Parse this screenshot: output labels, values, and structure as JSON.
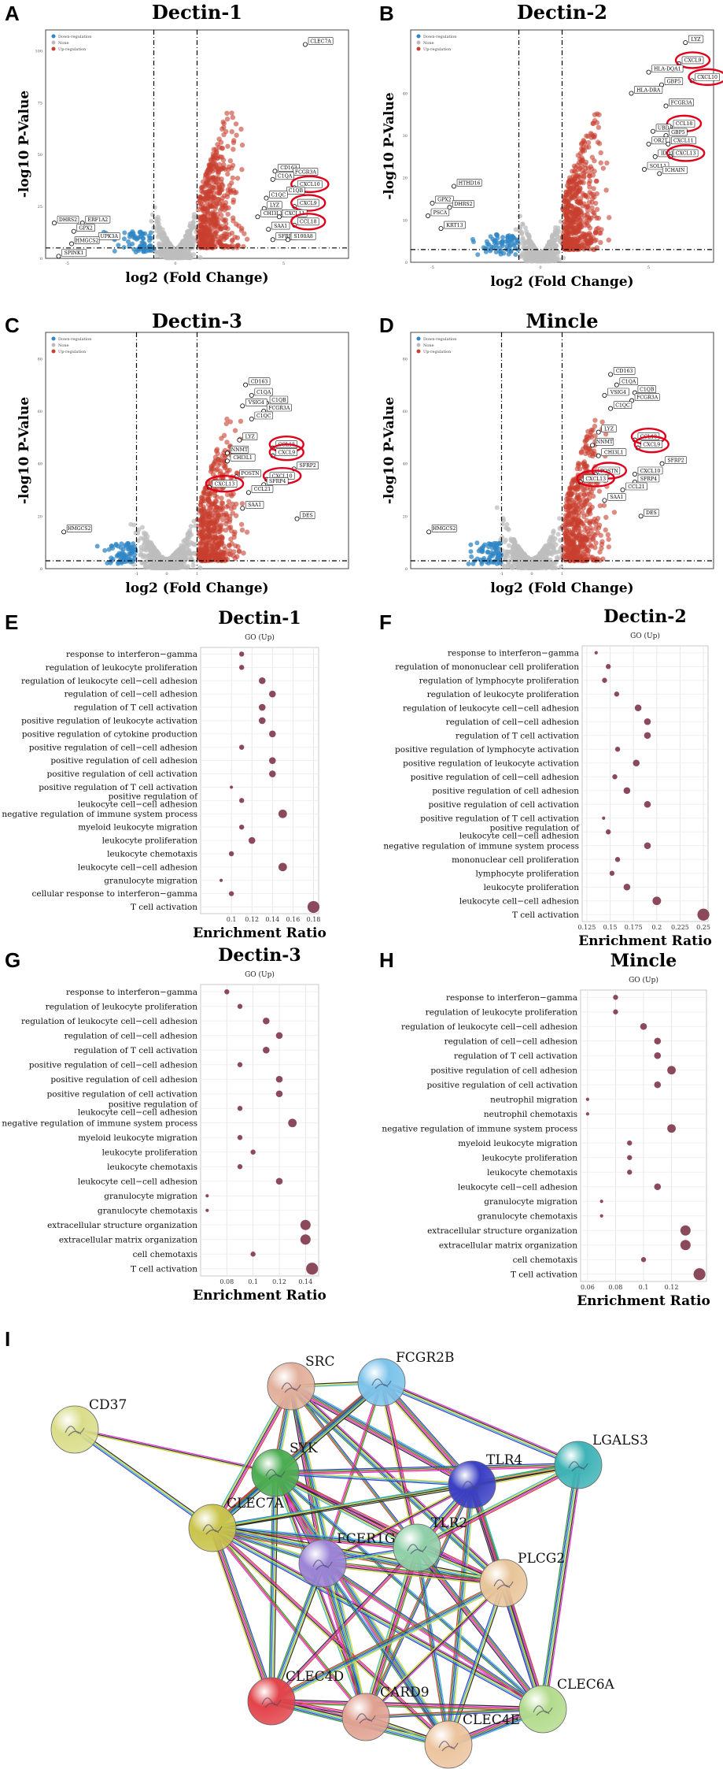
{
  "panel_labels": [
    "A",
    "B",
    "C",
    "D",
    "E",
    "F",
    "G",
    "H",
    "I"
  ],
  "volcano_common": {
    "xlabel": "log2 (Fold Change)",
    "ylabel": "-log10 P-Value",
    "legend": [
      "Down-regulation",
      "None",
      "Up-regulation"
    ],
    "colors": {
      "down": "#2f86c4",
      "none": "#bdbdbd",
      "up": "#c8402e",
      "highlight": "#e0001b"
    }
  },
  "volcano_plots": [
    {
      "id": "A",
      "title": "Dectin-1",
      "xlim": [
        -6,
        8
      ],
      "ylim": [
        0,
        110
      ],
      "yticks": [
        0,
        25,
        50,
        75,
        100
      ],
      "xticks": [
        -5,
        0,
        5
      ],
      "threshold": {
        "fc": 1,
        "p": 5
      },
      "labels_up": [
        {
          "text": "CLEC7A",
          "x": 6.0,
          "y": 103,
          "circled": false
        },
        {
          "text": "CD163",
          "x": 4.6,
          "y": 42,
          "circled": false
        },
        {
          "text": "FCGR3A",
          "x": 5.3,
          "y": 40,
          "circled": false
        },
        {
          "text": "C1QA",
          "x": 4.5,
          "y": 38,
          "circled": false
        },
        {
          "text": "CXCL10",
          "x": 5.5,
          "y": 34,
          "circled": true
        },
        {
          "text": "C1QB",
          "x": 5.0,
          "y": 31,
          "circled": false
        },
        {
          "text": "C1QC",
          "x": 4.2,
          "y": 29,
          "circled": false
        },
        {
          "text": "CXCL9",
          "x": 5.5,
          "y": 25,
          "circled": true
        },
        {
          "text": "LYZ",
          "x": 4.1,
          "y": 24,
          "circled": false
        },
        {
          "text": "CHI3L1",
          "x": 3.8,
          "y": 20,
          "circled": false
        },
        {
          "text": "CXCL11",
          "x": 4.8,
          "y": 20,
          "circled": false
        },
        {
          "text": "CCL18",
          "x": 5.5,
          "y": 16,
          "circled": true
        },
        {
          "text": "SAA1",
          "x": 4.3,
          "y": 14,
          "circled": false
        },
        {
          "text": "SFRP2",
          "x": 4.5,
          "y": 9,
          "circled": false
        },
        {
          "text": "S100A8",
          "x": 5.2,
          "y": 9,
          "circled": false
        }
      ],
      "labels_down": [
        {
          "text": "DHRS2",
          "x": -5.6,
          "y": 17
        },
        {
          "text": "ERF1A2",
          "x": -4.3,
          "y": 17
        },
        {
          "text": "GPX2",
          "x": -4.7,
          "y": 13
        },
        {
          "text": "UPK3A",
          "x": -3.7,
          "y": 9
        },
        {
          "text": "HMGCS2",
          "x": -4.8,
          "y": 7
        },
        {
          "text": "SPINK1",
          "x": -5.4,
          "y": 1
        }
      ]
    },
    {
      "id": "B",
      "title": "Dectin-2",
      "xlim": [
        -6,
        8
      ],
      "ylim": [
        0,
        55
      ],
      "yticks": [
        0,
        10,
        20,
        30,
        40
      ],
      "xticks": [
        -5,
        0,
        5
      ],
      "threshold": {
        "fc": 1,
        "p": 3
      },
      "labels_up": [
        {
          "text": "LYZ",
          "x": 6.7,
          "y": 52,
          "circled": false
        },
        {
          "text": "CXCL9",
          "x": 6.4,
          "y": 47,
          "circled": true
        },
        {
          "text": "HLA-DQA1",
          "x": 5.0,
          "y": 45,
          "circled": false
        },
        {
          "text": "CXCL10",
          "x": 7.0,
          "y": 43,
          "circled": true
        },
        {
          "text": "GBP5",
          "x": 5.6,
          "y": 42,
          "circled": false
        },
        {
          "text": "HLA-DRA",
          "x": 4.2,
          "y": 40,
          "circled": false
        },
        {
          "text": "FCGR3A",
          "x": 5.8,
          "y": 37,
          "circled": false
        },
        {
          "text": "CCL18",
          "x": 6.0,
          "y": 32,
          "circled": true
        },
        {
          "text": "UBD",
          "x": 5.2,
          "y": 31,
          "circled": false
        },
        {
          "text": "GBP5",
          "x": 5.8,
          "y": 30,
          "circled": false
        },
        {
          "text": "OR2T",
          "x": 5.0,
          "y": 28,
          "circled": false
        },
        {
          "text": "CXCL11",
          "x": 5.9,
          "y": 28,
          "circled": false
        },
        {
          "text": "IDO1",
          "x": 5.3,
          "y": 25,
          "circled": false
        },
        {
          "text": "CXCL13",
          "x": 6.0,
          "y": 25,
          "circled": true
        },
        {
          "text": "SOLL1",
          "x": 4.8,
          "y": 22,
          "circled": false
        },
        {
          "text": "ICHAIN",
          "x": 5.5,
          "y": 21,
          "circled": false
        }
      ],
      "labels_down": [
        {
          "text": "HTHD16",
          "x": -4.0,
          "y": 18
        },
        {
          "text": "GPX2",
          "x": -5.0,
          "y": 14
        },
        {
          "text": "DHRS2",
          "x": -4.2,
          "y": 13
        },
        {
          "text": "PSCA",
          "x": -5.2,
          "y": 11
        },
        {
          "text": "KRT13",
          "x": -4.6,
          "y": 8
        }
      ]
    },
    {
      "id": "C",
      "title": "Dectin-3",
      "xlim": [
        -4,
        6
      ],
      "ylim": [
        0,
        90
      ],
      "yticks": [
        0,
        20,
        40,
        60,
        80
      ],
      "xticks": [
        -1,
        0,
        1
      ],
      "threshold": {
        "fc": 1,
        "p": 3
      },
      "labels_up": [
        {
          "text": "CD163",
          "x": 2.6,
          "y": 70,
          "circled": false
        },
        {
          "text": "C1QA",
          "x": 2.8,
          "y": 66,
          "circled": false
        },
        {
          "text": "C1QB",
          "x": 3.3,
          "y": 63,
          "circled": false
        },
        {
          "text": "VSIG4",
          "x": 2.5,
          "y": 62,
          "circled": false
        },
        {
          "text": "FCGR3A",
          "x": 3.2,
          "y": 60,
          "circled": false
        },
        {
          "text": "C1QC",
          "x": 2.8,
          "y": 57,
          "circled": false
        },
        {
          "text": "LYZ",
          "x": 2.4,
          "y": 49,
          "circled": false
        },
        {
          "text": "CCL18",
          "x": 3.5,
          "y": 46,
          "circled": true
        },
        {
          "text": "NNMT",
          "x": 2.0,
          "y": 44,
          "circled": false
        },
        {
          "text": "CXCL9",
          "x": 3.5,
          "y": 43,
          "circled": true
        },
        {
          "text": "CHI3L1",
          "x": 2.0,
          "y": 41,
          "circled": false
        },
        {
          "text": "SFRP2",
          "x": 4.2,
          "y": 38,
          "circled": false
        },
        {
          "text": "POSTN",
          "x": 2.3,
          "y": 35,
          "circled": false
        },
        {
          "text": "CXCL10",
          "x": 3.3,
          "y": 34,
          "circled": true
        },
        {
          "text": "SFRP4",
          "x": 3.2,
          "y": 32,
          "circled": false
        },
        {
          "text": "CXCL13",
          "x": 1.4,
          "y": 31,
          "circled": true
        },
        {
          "text": "CCL21",
          "x": 2.7,
          "y": 29,
          "circled": false
        },
        {
          "text": "SAA1",
          "x": 2.5,
          "y": 23,
          "circled": false
        },
        {
          "text": "DES",
          "x": 4.3,
          "y": 19,
          "circled": false
        }
      ],
      "labels_down": [
        {
          "text": "HMGCS2",
          "x": -3.4,
          "y": 14
        }
      ]
    },
    {
      "id": "D",
      "title": "Mincle",
      "xlim": [
        -4,
        6
      ],
      "ylim": [
        0,
        90
      ],
      "yticks": [
        0,
        20,
        40,
        60,
        80
      ],
      "xticks": [
        -1,
        0,
        1
      ],
      "threshold": {
        "fc": 1,
        "p": 3
      },
      "labels_up": [
        {
          "text": "CD163",
          "x": 2.6,
          "y": 74,
          "circled": false
        },
        {
          "text": "C1QA",
          "x": 2.8,
          "y": 70,
          "circled": false
        },
        {
          "text": "C1QB",
          "x": 3.4,
          "y": 67,
          "circled": false
        },
        {
          "text": "VSIG4",
          "x": 2.4,
          "y": 66,
          "circled": false
        },
        {
          "text": "FCGR3A",
          "x": 3.3,
          "y": 64,
          "circled": false
        },
        {
          "text": "C1QC",
          "x": 2.6,
          "y": 61,
          "circled": false
        },
        {
          "text": "LYZ",
          "x": 2.2,
          "y": 52,
          "circled": false
        },
        {
          "text": "CCL18",
          "x": 3.4,
          "y": 49,
          "circled": true
        },
        {
          "text": "NNMT",
          "x": 2.0,
          "y": 47,
          "circled": false
        },
        {
          "text": "CXCL9",
          "x": 3.5,
          "y": 46,
          "circled": true
        },
        {
          "text": "CHI3L1",
          "x": 2.2,
          "y": 43,
          "circled": false
        },
        {
          "text": "SFRP2",
          "x": 4.3,
          "y": 40,
          "circled": false
        },
        {
          "text": "POSTN",
          "x": 2.1,
          "y": 36,
          "circled": true
        },
        {
          "text": "CXCL10",
          "x": 3.4,
          "y": 36,
          "circled": false
        },
        {
          "text": "CXCL13",
          "x": 1.6,
          "y": 33,
          "circled": true
        },
        {
          "text": "SFRP4",
          "x": 3.4,
          "y": 33,
          "circled": false
        },
        {
          "text": "CCL21",
          "x": 3.0,
          "y": 30,
          "circled": false
        },
        {
          "text": "SAA1",
          "x": 2.4,
          "y": 26,
          "circled": false
        },
        {
          "text": "DES",
          "x": 3.6,
          "y": 20,
          "circled": false
        }
      ],
      "labels_down": [
        {
          "text": "HMGCS2",
          "x": -3.4,
          "y": 14
        }
      ]
    }
  ],
  "go_common": {
    "subtitle": "GO (Up)",
    "xlabel": "Enrichment Ratio",
    "dot_color": "#8b4a5c"
  },
  "chart_data": [
    {
      "id": "E",
      "type": "scatter",
      "title": "Dectin-1",
      "subtitle": "GO (Up)",
      "xlabel": "Enrichment Ratio",
      "xlim": [
        0.07,
        0.185
      ],
      "xticks": [
        0.1,
        0.12,
        0.14,
        0.16,
        0.18
      ],
      "categories": [
        "response to interferon−gamma",
        "regulation of leukocyte proliferation",
        "regulation of leukocyte cell−cell adhesion",
        "regulation of cell−cell adhesion",
        "regulation of T cell activation",
        "positive regulation of leukocyte activation",
        "positive regulation of cytokine production",
        "positive regulation of cell−cell adhesion",
        "positive regulation of cell adhesion",
        "positive regulation of cell activation",
        "positive regulation of T cell activation",
        "positive regulation of\nleukocyte cell−cell adhesion",
        "negative regulation of immune system process",
        "myeloid leukocyte migration",
        "leukocyte proliferation",
        "leukocyte chemotaxis",
        "leukocyte cell−cell adhesion",
        "granulocyte migration",
        "cellular response to interferon−gamma",
        "T cell activation"
      ],
      "values": [
        0.11,
        0.11,
        0.13,
        0.14,
        0.13,
        0.13,
        0.14,
        0.11,
        0.14,
        0.14,
        0.1,
        0.11,
        0.15,
        0.11,
        0.12,
        0.1,
        0.15,
        0.09,
        0.1,
        0.18
      ],
      "sizes": [
        2,
        2,
        3,
        3,
        3,
        3,
        3,
        2,
        3,
        3,
        1,
        2,
        4,
        2,
        3,
        2,
        4,
        1,
        2,
        6
      ]
    },
    {
      "id": "F",
      "type": "scatter",
      "title": "Dectin-2",
      "subtitle": "GO (Up)",
      "xlabel": "Enrichment Ratio",
      "xlim": [
        0.12,
        0.255
      ],
      "xticks": [
        0.125,
        0.15,
        0.175,
        0.2,
        0.225,
        0.25
      ],
      "categories": [
        "response to interferon−gamma",
        "regulation of mononuclear cell proliferation",
        "regulation of lymphocyte proliferation",
        "regulation of leukocyte proliferation",
        "regulation of leukocyte cell−cell adhesion",
        "regulation of cell−cell adhesion",
        "regulation of T cell activation",
        "positive regulation of lymphocyte activation",
        "positive regulation of leukocyte activation",
        "positive regulation of cell−cell adhesion",
        "positive regulation of cell adhesion",
        "positive regulation of cell activation",
        "positive regulation of T cell activation",
        "positive regulation of\nleukocyte cell−cell adhesion",
        "negative regulation of immune system process",
        "mononuclear cell proliferation",
        "lymphocyte proliferation",
        "leukocyte proliferation",
        "leukocyte cell−cell adhesion",
        "T cell activation"
      ],
      "values": [
        0.135,
        0.148,
        0.144,
        0.157,
        0.18,
        0.19,
        0.19,
        0.158,
        0.178,
        0.155,
        0.168,
        0.19,
        0.143,
        0.148,
        0.19,
        0.158,
        0.152,
        0.168,
        0.2,
        0.25
      ],
      "sizes": [
        1,
        2,
        2,
        2,
        3,
        3,
        3,
        2,
        3,
        2,
        3,
        3,
        1,
        2,
        3,
        2,
        2,
        3,
        4,
        6
      ]
    },
    {
      "id": "G",
      "type": "scatter",
      "title": "Dectin-3",
      "subtitle": "GO (Up)",
      "xlabel": "Enrichment Ratio",
      "xlim": [
        0.06,
        0.15
      ],
      "xticks": [
        0.08,
        0.1,
        0.12,
        0.14
      ],
      "categories": [
        "response to interferon−gamma",
        "regulation of leukocyte proliferation",
        "regulation of leukocyte cell−cell adhesion",
        "regulation of cell−cell adhesion",
        "regulation of T cell activation",
        "positive regulation of cell−cell adhesion",
        "positive regulation of cell adhesion",
        "positive regulation of cell activation",
        "positive regulation of\nleukocyte cell−cell adhesion",
        "negative regulation of immune system process",
        "myeloid leukocyte migration",
        "leukocyte proliferation",
        "leukocyte chemotaxis",
        "leukocyte cell−cell adhesion",
        "granulocyte migration",
        "granulocyte chemotaxis",
        "extracellular structure organization",
        "extracellular matrix organization",
        "cell chemotaxis",
        "T cell activation"
      ],
      "values": [
        0.08,
        0.09,
        0.11,
        0.12,
        0.11,
        0.09,
        0.12,
        0.12,
        0.09,
        0.13,
        0.09,
        0.1,
        0.09,
        0.12,
        0.065,
        0.065,
        0.14,
        0.14,
        0.1,
        0.145
      ],
      "sizes": [
        2,
        2,
        3,
        3,
        3,
        2,
        3,
        3,
        2,
        4,
        2,
        2,
        2,
        3,
        1,
        1,
        5,
        5,
        2,
        6
      ]
    },
    {
      "id": "H",
      "type": "scatter",
      "title": "Mincle",
      "subtitle": "GO (Up)",
      "xlabel": "Enrichment Ratio",
      "xlim": [
        0.055,
        0.145
      ],
      "xticks": [
        0.06,
        0.08,
        0.1,
        0.12
      ],
      "categories": [
        "response to interferon−gamma",
        "regulation of leukocyte proliferation",
        "regulation of leukocyte cell−cell adhesion",
        "regulation of cell−cell adhesion",
        "regulation of T cell activation",
        "positive regulation of cell adhesion",
        "positive regulation of cell activation",
        "neutrophil migration",
        "neutrophil chemotaxis",
        "negative regulation of immune system process",
        "myeloid leukocyte migration",
        "leukocyte proliferation",
        "leukocyte chemotaxis",
        "leukocyte cell−cell adhesion",
        "granulocyte migration",
        "granulocyte chemotaxis",
        "extracellular structure organization",
        "extracellular matrix organization",
        "cell chemotaxis",
        "T cell activation"
      ],
      "values": [
        0.08,
        0.08,
        0.1,
        0.11,
        0.11,
        0.12,
        0.11,
        0.06,
        0.06,
        0.12,
        0.09,
        0.09,
        0.09,
        0.11,
        0.07,
        0.07,
        0.13,
        0.13,
        0.1,
        0.14
      ],
      "sizes": [
        2,
        2,
        3,
        3,
        3,
        4,
        3,
        1,
        1,
        4,
        2,
        2,
        2,
        3,
        1,
        1,
        5,
        5,
        2,
        6
      ]
    }
  ],
  "network": {
    "nodes": [
      {
        "id": "CD37",
        "label": "CD37",
        "color": "#d9dd8a"
      },
      {
        "id": "SRC",
        "label": "SRC",
        "color": "#e2b09c"
      },
      {
        "id": "FCGR2B",
        "label": "FCGR2B",
        "color": "#7cc3ea"
      },
      {
        "id": "SYK",
        "label": "SYK",
        "color": "#4cad52"
      },
      {
        "id": "TLR4",
        "label": "TLR4",
        "color": "#3a3fc4"
      },
      {
        "id": "LGALS3",
        "label": "LGALS3",
        "color": "#3eb3b6"
      },
      {
        "id": "CLEC7A",
        "label": "CLEC7A",
        "color": "#c9c44c"
      },
      {
        "id": "TLR2",
        "label": "TLR2",
        "color": "#8fd0a8"
      },
      {
        "id": "FCER1G",
        "label": "FCER1G",
        "color": "#9b84d6"
      },
      {
        "id": "PLCG2",
        "label": "PLCG2",
        "color": "#e8c59a"
      },
      {
        "id": "CLEC6A",
        "label": "CLEC6A",
        "color": "#b3db8c"
      },
      {
        "id": "CLEC4D",
        "label": "CLEC4D",
        "color": "#e2444a"
      },
      {
        "id": "CARD9",
        "label": "CARD9",
        "color": "#e0a292"
      },
      {
        "id": "CLEC4E",
        "label": "CLEC4E",
        "color": "#ecc49e"
      }
    ],
    "edge_colors": [
      "#e031d6",
      "#2c2c2c",
      "#d3d336",
      "#36b8c4",
      "#3a3ad0",
      "#2b9a2b",
      "#cf3a3a"
    ]
  }
}
